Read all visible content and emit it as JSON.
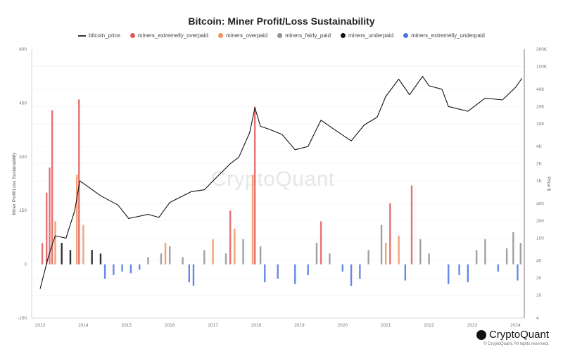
{
  "chart_data": {
    "type": "bar",
    "title": "Bitcoin: Miner Profit/Loss Sustainability",
    "ylabel": "Miner Profit/Loss Sustainability",
    "y2label": "Price $",
    "ylim": [
      -150,
      600
    ],
    "y2lim_log": [
      4,
      200000
    ],
    "yticks": [
      "600",
      "450",
      "300",
      "150",
      "0",
      "-150"
    ],
    "y2ticks": [
      "200K",
      "100K",
      "40K",
      "20K",
      "10K",
      "4K",
      "2K",
      "1K",
      "400",
      "200",
      "100",
      "40",
      "20",
      "10",
      "4"
    ],
    "y2tick_values": [
      200000,
      100000,
      40000,
      20000,
      10000,
      4000,
      2000,
      1000,
      400,
      200,
      100,
      40,
      20,
      10,
      4
    ],
    "xticks": [
      "2013",
      "2014",
      "2015",
      "2016",
      "2017",
      "2018",
      "2019",
      "2020",
      "2021",
      "2022",
      "2023",
      "2024"
    ],
    "legend": [
      {
        "name": "bitcoin_price",
        "color": "#222222",
        "kind": "line"
      },
      {
        "name": "miners_extremelly_overpaid",
        "color": "#e05a5a",
        "kind": "dot"
      },
      {
        "name": "miners_overpaid",
        "color": "#f0935a",
        "kind": "dot"
      },
      {
        "name": "miners_fairly_paid",
        "color": "#8f8f98",
        "kind": "dot"
      },
      {
        "name": "miners_underpaid",
        "color": "#111111",
        "kind": "dot"
      },
      {
        "name": "miners_extremelly_underpaid",
        "color": "#4a74e0",
        "kind": "dot"
      }
    ],
    "price": [
      [
        2013.0,
        13
      ],
      [
        2013.2,
        50
      ],
      [
        2013.35,
        110
      ],
      [
        2013.6,
        100
      ],
      [
        2013.8,
        300
      ],
      [
        2013.92,
        1000
      ],
      [
        2014.1,
        800
      ],
      [
        2014.4,
        550
      ],
      [
        2014.8,
        380
      ],
      [
        2015.05,
        220
      ],
      [
        2015.5,
        260
      ],
      [
        2015.75,
        230
      ],
      [
        2016.0,
        420
      ],
      [
        2016.5,
        650
      ],
      [
        2016.8,
        700
      ],
      [
        2017.0,
        1000
      ],
      [
        2017.4,
        2000
      ],
      [
        2017.6,
        2600
      ],
      [
        2017.85,
        7000
      ],
      [
        2017.97,
        19000
      ],
      [
        2018.1,
        9000
      ],
      [
        2018.3,
        8000
      ],
      [
        2018.6,
        6500
      ],
      [
        2018.9,
        3500
      ],
      [
        2019.2,
        4000
      ],
      [
        2019.5,
        11500
      ],
      [
        2019.8,
        8000
      ],
      [
        2020.2,
        5000
      ],
      [
        2020.5,
        9500
      ],
      [
        2020.8,
        13000
      ],
      [
        2021.0,
        30000
      ],
      [
        2021.3,
        60000
      ],
      [
        2021.55,
        32000
      ],
      [
        2021.85,
        67000
      ],
      [
        2022.0,
        46000
      ],
      [
        2022.3,
        40000
      ],
      [
        2022.45,
        20000
      ],
      [
        2022.9,
        16500
      ],
      [
        2023.3,
        28000
      ],
      [
        2023.7,
        26000
      ],
      [
        2024.0,
        43000
      ],
      [
        2024.15,
        62000
      ]
    ],
    "bars": [
      [
        2013.05,
        60,
        "miners_extremelly_overpaid"
      ],
      [
        2013.15,
        200,
        "miners_extremelly_overpaid"
      ],
      [
        2013.22,
        270,
        "miners_extremelly_overpaid"
      ],
      [
        2013.28,
        430,
        "miners_extremelly_overpaid"
      ],
      [
        2013.35,
        120,
        "miners_overpaid"
      ],
      [
        2013.5,
        60,
        "miners_underpaid"
      ],
      [
        2013.7,
        40,
        "miners_underpaid"
      ],
      [
        2013.85,
        250,
        "miners_overpaid"
      ],
      [
        2013.9,
        460,
        "miners_extremelly_overpaid"
      ],
      [
        2014.0,
        110,
        "miners_overpaid"
      ],
      [
        2014.2,
        40,
        "miners_underpaid"
      ],
      [
        2014.4,
        30,
        "miners_underpaid"
      ],
      [
        2014.5,
        -40,
        "miners_extremelly_underpaid"
      ],
      [
        2014.7,
        -30,
        "miners_extremelly_underpaid"
      ],
      [
        2014.9,
        -20,
        "miners_extremelly_underpaid"
      ],
      [
        2015.1,
        -25,
        "miners_extremelly_underpaid"
      ],
      [
        2015.3,
        -15,
        "miners_extremelly_underpaid"
      ],
      [
        2015.5,
        20,
        "miners_fairly_paid"
      ],
      [
        2015.8,
        30,
        "miners_fairly_paid"
      ],
      [
        2015.9,
        60,
        "miners_overpaid"
      ],
      [
        2016.0,
        50,
        "miners_fairly_paid"
      ],
      [
        2016.3,
        20,
        "miners_fairly_paid"
      ],
      [
        2016.45,
        -50,
        "miners_extremelly_underpaid"
      ],
      [
        2016.55,
        -60,
        "miners_extremelly_underpaid"
      ],
      [
        2016.8,
        40,
        "miners_fairly_paid"
      ],
      [
        2017.0,
        70,
        "miners_overpaid"
      ],
      [
        2017.3,
        30,
        "miners_fairly_paid"
      ],
      [
        2017.4,
        150,
        "miners_extremelly_overpaid"
      ],
      [
        2017.5,
        100,
        "miners_overpaid"
      ],
      [
        2017.7,
        70,
        "miners_fairly_paid"
      ],
      [
        2017.92,
        250,
        "miners_overpaid"
      ],
      [
        2017.97,
        440,
        "miners_extremelly_overpaid"
      ],
      [
        2018.1,
        50,
        "miners_fairly_paid"
      ],
      [
        2018.2,
        -50,
        "miners_extremelly_underpaid"
      ],
      [
        2018.5,
        -40,
        "miners_extremelly_underpaid"
      ],
      [
        2018.9,
        -55,
        "miners_extremelly_underpaid"
      ],
      [
        2019.2,
        -30,
        "miners_extremelly_underpaid"
      ],
      [
        2019.4,
        60,
        "miners_fairly_paid"
      ],
      [
        2019.5,
        120,
        "miners_extremelly_overpaid"
      ],
      [
        2019.7,
        30,
        "miners_fairly_paid"
      ],
      [
        2020.0,
        -20,
        "miners_extremelly_underpaid"
      ],
      [
        2020.2,
        -60,
        "miners_extremelly_underpaid"
      ],
      [
        2020.4,
        -40,
        "miners_extremelly_underpaid"
      ],
      [
        2020.6,
        40,
        "miners_fairly_paid"
      ],
      [
        2020.9,
        110,
        "miners_fairly_paid"
      ],
      [
        2021.0,
        60,
        "miners_overpaid"
      ],
      [
        2021.1,
        170,
        "miners_extremelly_overpaid"
      ],
      [
        2021.3,
        80,
        "miners_overpaid"
      ],
      [
        2021.45,
        -45,
        "miners_extremelly_underpaid"
      ],
      [
        2021.6,
        220,
        "miners_extremelly_overpaid"
      ],
      [
        2021.8,
        70,
        "miners_fairly_paid"
      ],
      [
        2022.0,
        30,
        "miners_fairly_paid"
      ],
      [
        2022.45,
        -55,
        "miners_extremelly_underpaid"
      ],
      [
        2022.7,
        -30,
        "miners_extremelly_underpaid"
      ],
      [
        2022.9,
        -50,
        "miners_extremelly_underpaid"
      ],
      [
        2023.1,
        40,
        "miners_fairly_paid"
      ],
      [
        2023.3,
        70,
        "miners_fairly_paid"
      ],
      [
        2023.6,
        -20,
        "miners_extremelly_underpaid"
      ],
      [
        2023.8,
        45,
        "miners_fairly_paid"
      ],
      [
        2023.95,
        90,
        "miners_fairly_paid"
      ],
      [
        2024.05,
        -45,
        "miners_extremelly_underpaid"
      ],
      [
        2024.12,
        60,
        "miners_fairly_paid"
      ]
    ]
  },
  "watermark": "CryptoQuant",
  "logo": "CryptoQuant",
  "copyright": "© CryptoQuant. All rights reserved."
}
